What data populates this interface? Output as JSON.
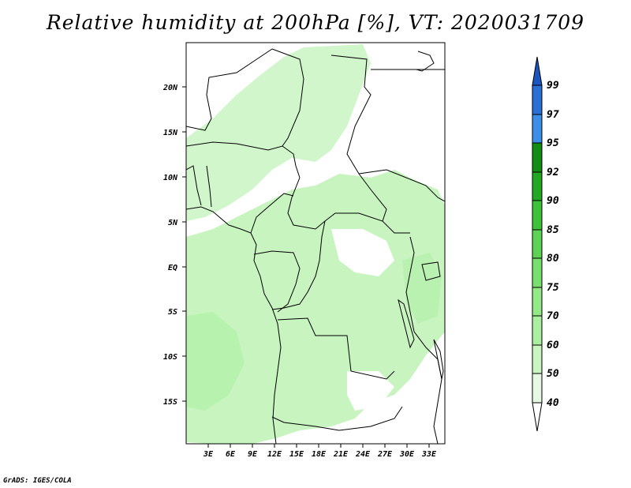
{
  "title": "Relative humidity at 200hPa [%], VT: 2020031709",
  "credit": "GrADS: IGES/COLA",
  "axes": {
    "lat_ticks": [
      "20N",
      "15N",
      "10N",
      "5N",
      "EQ",
      "5S",
      "10S",
      "15S"
    ],
    "lon_ticks": [
      "3E",
      "6E",
      "9E",
      "12E",
      "15E",
      "18E",
      "21E",
      "24E",
      "27E",
      "30E",
      "33E"
    ]
  },
  "colorbar": {
    "levels": [
      "40",
      "50",
      "60",
      "70",
      "75",
      "80",
      "85",
      "90",
      "92",
      "95",
      "97",
      "99"
    ],
    "colors": [
      "#ffffff",
      "#e6fae3",
      "#c9f5c1",
      "#aaf0a0",
      "#93ea87",
      "#79e06d",
      "#5ed254",
      "#3ec23a",
      "#22a822",
      "#138c13",
      "#3c8ee8",
      "#2a6ed6",
      "#1a55c0"
    ]
  },
  "map": {
    "shading_color": "#c8f4c0",
    "region": "Central Africa, 0-35E, 20S-25N"
  }
}
